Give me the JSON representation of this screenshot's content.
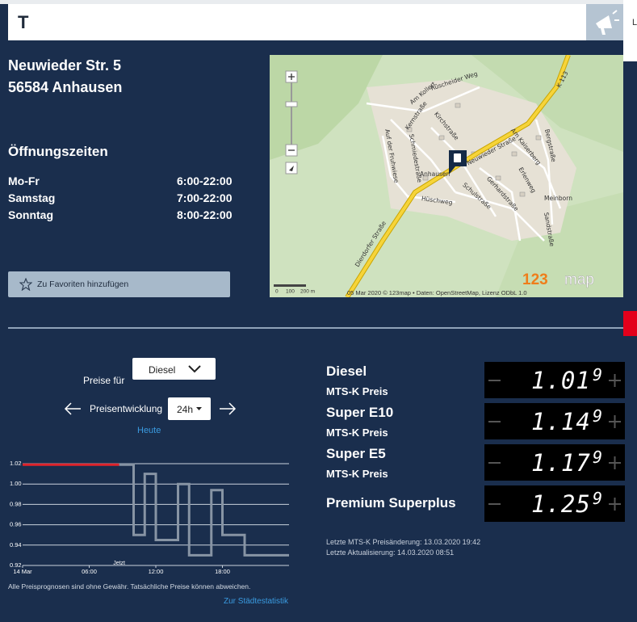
{
  "header": {
    "title": "T",
    "side_label": "L"
  },
  "station": {
    "address_line1": "Neuwieder Str. 5",
    "address_line2": "56584 Anhausen"
  },
  "opening_hours": {
    "title": "Öffnungszeiten",
    "rows": [
      [
        "Mo-Fr",
        "6:00-22:00"
      ],
      [
        "Samstag",
        "7:00-22:00"
      ],
      [
        "Sonntag",
        "8:00-22:00"
      ]
    ]
  },
  "favorite_button": "Zu Favoriten hinzufügen",
  "map": {
    "labels": [
      "Neuwieder Straße",
      "Dierdorfer Straße",
      "K 113",
      "Anhausen",
      "Meinborn",
      "Hüschweg",
      "Kernstraße",
      "Kirchstraße",
      "Schulstraße",
      "Gerhardstraße",
      "Bergstraße",
      "Am Kaiserberg",
      "Rüscheider Weg",
      "Am Kollert",
      "Auf der Fruhwiese",
      "Schmiedestraße",
      "Erlenweg",
      "Sandstraße"
    ],
    "scale": [
      "0",
      "100",
      "200 m"
    ],
    "attribution": "05 Mar 2020 © 123map • Daten: OpenStreetMap, Lizenz ODbL 1.0",
    "logo_main": "123",
    "logo_tail": "map"
  },
  "price_controls": {
    "prices_for": "Preise für",
    "fuel_select": "Diesel",
    "trend_label": "Preisentwicklung",
    "period_select": "24h",
    "today_link": "Heute"
  },
  "chart_data": {
    "type": "line",
    "xlim": [
      0,
      24
    ],
    "xticks": [
      {
        "value": 0,
        "label": "14 Mar"
      },
      {
        "value": 6,
        "label": "06:00"
      },
      {
        "value": 12,
        "label": "12:00"
      },
      {
        "value": 18,
        "label": "18:00"
      }
    ],
    "ylim": [
      0.92,
      1.03
    ],
    "yticks": [
      0.92,
      0.94,
      0.96,
      0.98,
      {
        "value": 1.0,
        "label": "1.00"
      },
      1.02
    ],
    "grid": true,
    "annotation": "Jetzt",
    "series": [
      {
        "color": "#e0242b",
        "x": [
          0,
          8.7
        ],
        "values": [
          1.019,
          1.019
        ]
      },
      {
        "color": "#8794a4",
        "x": [
          8.7,
          10,
          10,
          11,
          11,
          12,
          12,
          14,
          14,
          15,
          15,
          17,
          17,
          18,
          18,
          20,
          20,
          24
        ],
        "values": [
          1.019,
          1.019,
          0.95,
          0.95,
          1.01,
          1.01,
          0.945,
          0.945,
          1.0,
          1.0,
          0.93,
          0.93,
          0.994,
          0.994,
          0.95,
          0.95,
          0.93,
          0.93
        ]
      }
    ]
  },
  "disclaimer": "Alle Preisprognosen sind ohne Gewähr. Tatsächliche Preise können abweichen.",
  "city_stats_link": "Zur Städtestatistik",
  "fuels": [
    {
      "name": "Diesel",
      "sub": "MTS-K Preis",
      "price_main": "1.01",
      "price_sup": "9"
    },
    {
      "name": "Super E10",
      "sub": "MTS-K Preis",
      "price_main": "1.14",
      "price_sup": "9"
    },
    {
      "name": "Super E5",
      "sub": "MTS-K Preis",
      "price_main": "1.17",
      "price_sup": "9"
    },
    {
      "name": "Premium Superplus",
      "price_main": "1.25",
      "price_sup": "9"
    }
  ],
  "last_change": "Letzte MTS-K Preisänderung: 13.03.2020 19:42",
  "last_update": "Letzte Aktualisierung: 14.03.2020 08:51"
}
